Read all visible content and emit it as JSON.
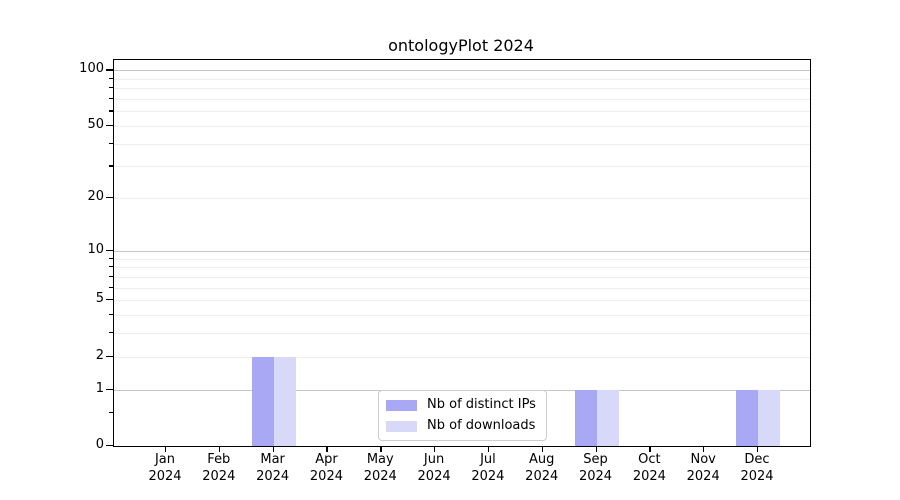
{
  "chart_data": {
    "type": "bar",
    "title": "ontologyPlot 2024",
    "categories": [
      "Jan 2024",
      "Feb 2024",
      "Mar 2024",
      "Apr 2024",
      "May 2024",
      "Jun 2024",
      "Jul 2024",
      "Aug 2024",
      "Sep 2024",
      "Oct 2024",
      "Nov 2024",
      "Dec 2024"
    ],
    "series": [
      {
        "name": "Nb of distinct IPs",
        "color": "#a8a8f4",
        "values": [
          0,
          0,
          2,
          0,
          0,
          0,
          0,
          0,
          1,
          0,
          0,
          1
        ]
      },
      {
        "name": "Nb of downloads",
        "color": "#d8d8f8",
        "values": [
          0,
          0,
          2,
          0,
          0,
          0,
          0,
          0,
          1,
          0,
          0,
          1
        ]
      }
    ],
    "xlabel": "",
    "ylabel": "",
    "yscale": "log1p",
    "ylim": [
      0,
      113.5
    ],
    "yticks": [
      0,
      1,
      2,
      5,
      10,
      20,
      50,
      100
    ],
    "grid": true,
    "gridlines": {
      "major": [
        1,
        10,
        100
      ],
      "minor": [
        2,
        3,
        4,
        5,
        6,
        7,
        8,
        9,
        20,
        30,
        40,
        50,
        60,
        70,
        80,
        90
      ]
    },
    "minor_axis_ticks": [
      0.5,
      3,
      4,
      6,
      7,
      8,
      9,
      30,
      40,
      60,
      70,
      80,
      90
    ],
    "legend": {
      "position": "lower center"
    },
    "colors": {
      "grid_major": "#c6c6c6",
      "grid_minor": "#eeeeee",
      "axis": "#000000",
      "text": "#000000",
      "background": "#ffffff"
    }
  }
}
